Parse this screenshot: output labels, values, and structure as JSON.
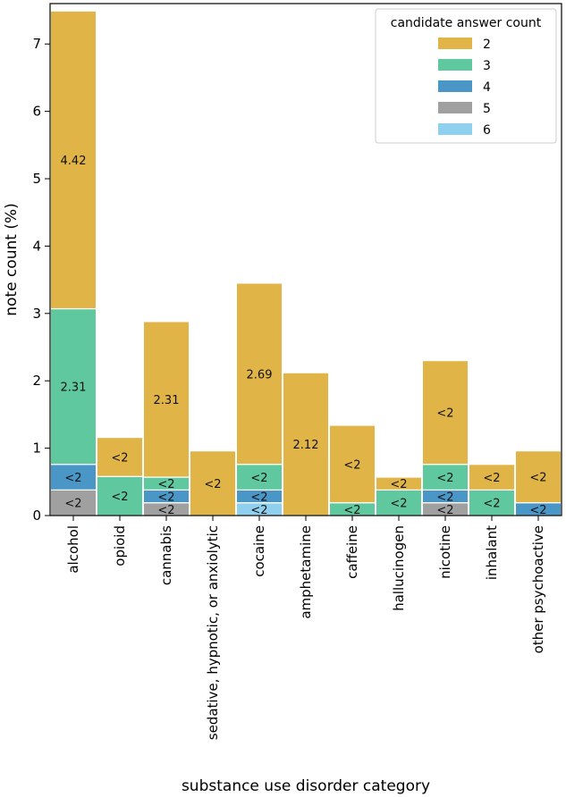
{
  "chart_data": {
    "type": "bar",
    "stacked": true,
    "xlabel": "substance use disorder category",
    "ylabel": "note count (%)",
    "ylim": [
      0,
      7.6
    ],
    "yticks": [
      0,
      1,
      2,
      3,
      4,
      5,
      6,
      7
    ],
    "grid": false,
    "categories": [
      "alcohol",
      "opioid",
      "cannabis",
      "sedative, hypnotic, or anxiolytic",
      "cocaine",
      "amphetamine",
      "caffeine",
      "hallucinogen",
      "nicotine",
      "inhalant",
      "other psychoactive"
    ],
    "legend": {
      "title": "candidate answer count",
      "position": "top-right"
    },
    "stack_order": [
      "5",
      "6",
      "4",
      "3",
      "2"
    ],
    "series": [
      {
        "name": "2",
        "color": "#e0b446",
        "values": [
          4.42,
          0.58,
          2.31,
          0.96,
          2.69,
          2.12,
          1.15,
          0.19,
          1.54,
          0.38,
          0.77
        ],
        "labels": [
          "4.42",
          "<2",
          "2.31",
          "<2",
          "2.69",
          "2.12",
          "<2",
          "<2",
          "<2",
          "<2",
          "<2"
        ]
      },
      {
        "name": "3",
        "color": "#5fc89e",
        "values": [
          2.31,
          0.58,
          0.19,
          0,
          0.38,
          0,
          0.19,
          0.38,
          0.38,
          0.38,
          0
        ],
        "labels": [
          "2.31",
          "<2",
          "<2",
          "",
          "<2",
          "",
          "<2",
          "<2",
          "<2",
          "<2",
          ""
        ]
      },
      {
        "name": "4",
        "color": "#4a96c6",
        "values": [
          0.38,
          0,
          0.19,
          0,
          0.19,
          0,
          0,
          0,
          0.19,
          0,
          0.19
        ],
        "labels": [
          "<2",
          "",
          "<2",
          "",
          "<2",
          "",
          "",
          "",
          "<2",
          "",
          "<2"
        ]
      },
      {
        "name": "5",
        "color": "#a0a0a0",
        "values": [
          0.38,
          0,
          0.19,
          0,
          0,
          0,
          0,
          0,
          0.19,
          0,
          0
        ],
        "labels": [
          "<2",
          "",
          "<2",
          "",
          "",
          "",
          "",
          "",
          "<2",
          "",
          ""
        ]
      },
      {
        "name": "6",
        "color": "#8fd0ee",
        "values": [
          0,
          0,
          0,
          0,
          0.19,
          0,
          0,
          0,
          0,
          0,
          0
        ],
        "labels": [
          "",
          "",
          "",
          "",
          "<2",
          "",
          "",
          "",
          "",
          "",
          ""
        ]
      }
    ]
  }
}
